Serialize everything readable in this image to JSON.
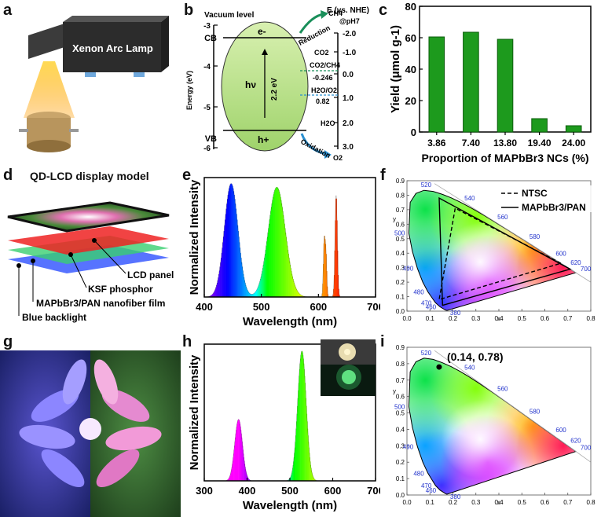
{
  "labels": {
    "a": "a",
    "b": "b",
    "c": "c",
    "d": "d",
    "e": "e",
    "f": "f",
    "g": "g",
    "h": "h",
    "i": "i"
  },
  "panel_a": {
    "lamp_label": "Xenon Arc Lamp"
  },
  "panel_b": {
    "vacuum_label": "Vacuum level",
    "nhe_label": "E (vs. NHE)",
    "ph_label": "@pH7",
    "ylabel": "Energy (eV)",
    "left_ticks": [
      "-3",
      "-4",
      "-5",
      "-6"
    ],
    "right_ticks": [
      "-2.0",
      "-1.0",
      "0.0",
      "1.0",
      "2.0",
      "3.0"
    ],
    "cb": "CB",
    "vb": "VB",
    "e": "e-",
    "h": "h+",
    "hv": "hν",
    "gap": "2.2 eV",
    "ch4": "CH4",
    "co2": "CO2",
    "reduction": "Reduction",
    "co2ch4": "CO2/CH4",
    "v1": "-0.246",
    "h2oo2": "H2O/O2",
    "v2": "0.82",
    "h2o": "H2O",
    "oxidation": "Oxidation",
    "o2": "O2"
  },
  "panel_d": {
    "title": "QD-LCD display model",
    "lcd": "LCD panel",
    "ksf": "KSF phosphor",
    "film": "MAPbBr3/PAN nanofiber film",
    "backlight": "Blue backlight"
  },
  "chart_data": [
    {
      "type": "bar",
      "panel": "c",
      "categories": [
        "3.86",
        "7.40",
        "13.80",
        "19.40",
        "24.00"
      ],
      "values": [
        60.5,
        63.5,
        59,
        8.5,
        4
      ],
      "xlabel": "Proportion of MAPbBr3 NCs (%)",
      "ylabel": "Yield (μmol g-1)",
      "ylim": [
        0,
        80
      ],
      "yticks": [
        "0",
        "20",
        "40",
        "60",
        "80"
      ],
      "color": "#1d9a1d"
    },
    {
      "type": "line",
      "panel": "e",
      "xlabel": "Wavelength (nm)",
      "ylabel": "Normalized Intensity",
      "xlim": [
        400,
        700
      ],
      "xticks": [
        "400",
        "500",
        "600",
        "700"
      ],
      "peaks": [
        {
          "center": 447,
          "width": 12,
          "height": 0.95
        },
        {
          "center": 527,
          "width": 15,
          "height": 0.92
        },
        {
          "center": 631,
          "width": 2,
          "height": 0.85
        },
        {
          "center": 610,
          "width": 1.5,
          "height": 0.45
        },
        {
          "center": 613,
          "width": 1.5,
          "height": 0.35
        }
      ]
    },
    {
      "type": "scatter",
      "panel": "f",
      "xlim": [
        0,
        0.8
      ],
      "ylim": [
        0,
        0.9
      ],
      "xticks": [
        "0.0",
        "0.1",
        "0.2",
        "0.3",
        "0.4",
        "0.5",
        "0.6",
        "0.7",
        "0.8"
      ],
      "yticks": [
        "0.0",
        "0.1",
        "0.2",
        "0.3",
        "0.4",
        "0.5",
        "0.6",
        "0.7",
        "0.8",
        "0.9"
      ],
      "xlabel": "x",
      "ylabel": "y",
      "legend": [
        "NTSC",
        "MAPbBr3/PAN"
      ],
      "ntsc": [
        [
          0.67,
          0.33
        ],
        [
          0.21,
          0.71
        ],
        [
          0.14,
          0.08
        ]
      ],
      "film": [
        [
          0.71,
          0.29
        ],
        [
          0.14,
          0.78
        ],
        [
          0.155,
          0.04
        ]
      ],
      "wavelength_labels": [
        "520",
        "540",
        "560",
        "580",
        "600",
        "620",
        "700",
        "500",
        "490",
        "480",
        "470",
        "460",
        "380"
      ]
    },
    {
      "type": "line",
      "panel": "h",
      "xlabel": "Wavelength (nm)",
      "ylabel": "Normalized Intensity",
      "xlim": [
        300,
        700
      ],
      "xticks": [
        "300",
        "400",
        "500",
        "600",
        "700"
      ],
      "peaks": [
        {
          "center": 380,
          "width": 9,
          "height": 0.45
        },
        {
          "center": 528,
          "width": 10,
          "height": 0.95
        }
      ]
    },
    {
      "type": "scatter",
      "panel": "i",
      "xlim": [
        0,
        0.8
      ],
      "ylim": [
        0,
        0.9
      ],
      "xticks": [
        "0.0",
        "0.1",
        "0.2",
        "0.3",
        "0.4",
        "0.5",
        "0.6",
        "0.7",
        "0.8"
      ],
      "yticks": [
        "0.0",
        "0.1",
        "0.2",
        "0.3",
        "0.4",
        "0.5",
        "0.6",
        "0.7",
        "0.8",
        "0.9"
      ],
      "xlabel": "x",
      "ylabel": "y",
      "point": [
        0.14,
        0.78
      ],
      "point_label": "(0.14, 0.78)",
      "wavelength_labels": [
        "520",
        "540",
        "560",
        "580",
        "600",
        "620",
        "700",
        "500",
        "490",
        "480",
        "470",
        "460",
        "380"
      ]
    }
  ]
}
